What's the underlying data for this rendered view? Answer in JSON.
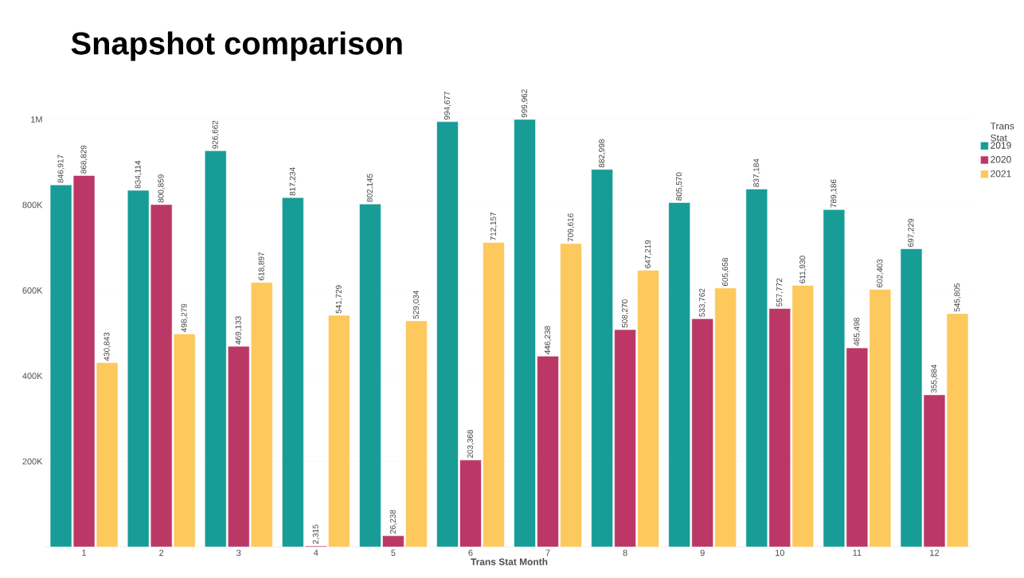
{
  "chart_data": {
    "type": "bar",
    "title": "Snapshot comparison",
    "xlabel": "Trans Stat Month",
    "legend_title": "Trans Stat",
    "categories": [
      "1",
      "2",
      "3",
      "4",
      "5",
      "6",
      "7",
      "8",
      "9",
      "10",
      "11",
      "12"
    ],
    "series": [
      {
        "name": "2019",
        "color": "#179c96",
        "values": [
          846917,
          834114,
          926662,
          817234,
          802145,
          994677,
          999962,
          882998,
          805570,
          837184,
          789186,
          697229
        ],
        "value_labels": [
          "846,917",
          "834,114",
          "926,662",
          "817,234",
          "802,145",
          "994,677",
          "999,962",
          "882,998",
          "805,570",
          "837,184",
          "789,186",
          "697,229"
        ]
      },
      {
        "name": "2020",
        "color": "#bb3866",
        "values": [
          868829,
          800859,
          469133,
          2315,
          26238,
          203368,
          446238,
          508270,
          533762,
          557772,
          465498,
          355884
        ],
        "value_labels": [
          "868,829",
          "800,859",
          "469,133",
          "2,315",
          "26,238",
          "203,368",
          "446,238",
          "508,270",
          "533,762",
          "557,772",
          "465,498",
          "355,884"
        ]
      },
      {
        "name": "2021",
        "color": "#fdc85c",
        "values": [
          430843,
          498279,
          618897,
          541729,
          529034,
          712157,
          709616,
          647219,
          605658,
          611930,
          602403,
          545805
        ],
        "value_labels": [
          "430,843",
          "498,279",
          "618,897",
          "541,729",
          "529,034",
          "712,157",
          "709,616",
          "647,219",
          "605,658",
          "611,930",
          "602,403",
          "545,805"
        ]
      }
    ],
    "ylim": [
      0,
      1000000
    ],
    "yticks": [
      {
        "value": 200000,
        "label": "200K"
      },
      {
        "value": 400000,
        "label": "400K"
      },
      {
        "value": 600000,
        "label": "600K"
      },
      {
        "value": 800000,
        "label": "800K"
      },
      {
        "value": 1000000,
        "label": "1M"
      }
    ],
    "grid": "y",
    "legend": "top right"
  }
}
